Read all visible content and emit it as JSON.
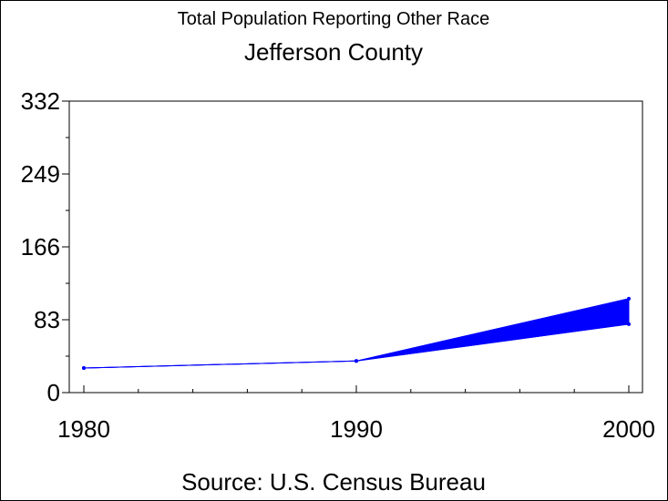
{
  "chart_data": {
    "type": "line",
    "title": "Total Population Reporting Other Race",
    "subtitle": "Jefferson County",
    "footnote": "Source: U.S. Census Bureau",
    "xlabel": "",
    "ylabel": "",
    "x_ticks": [
      "1980",
      "1990",
      "2000"
    ],
    "y_ticks": [
      "0",
      "83",
      "166",
      "249",
      "332"
    ],
    "ylim": [
      0,
      332
    ],
    "x": [
      1980,
      1990,
      2000
    ],
    "series": [
      {
        "values": [
          28,
          36,
          107
        ]
      },
      {
        "values": [
          28,
          36,
          78
        ]
      }
    ],
    "band_between_series": true,
    "grid": false,
    "colors": {
      "series": "#0000ff",
      "axis": "#000000",
      "background": "#ffffff"
    }
  }
}
